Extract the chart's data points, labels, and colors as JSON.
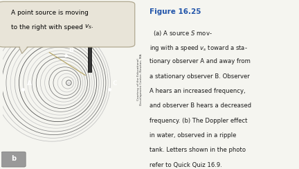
{
  "bg_color": "#f5f5f0",
  "callout_box_color": "#e8e4d8",
  "callout_box_edge": "#b0a890",
  "figure_label": "b",
  "caption_figure": "Figure 16.25",
  "caption_color": "#1a1a1a",
  "caption_figure_color": "#2255aa",
  "photo_bg": "#1a1a1a",
  "n_waves": 18,
  "courtesy_text": "Courtesy of the Educational\nDevelopment Center, Newton, MA"
}
